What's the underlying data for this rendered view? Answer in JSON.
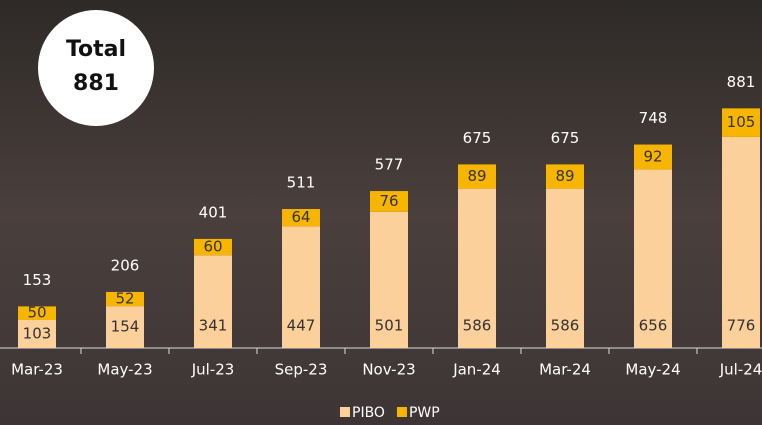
{
  "chart_data": {
    "type": "stacked-bar",
    "badge": {
      "label": "Total",
      "value": 881
    },
    "categories": [
      "Mar-23",
      "May-23",
      "Jul-23",
      "Sep-23",
      "Nov-23",
      "Jan-24",
      "Mar-24",
      "May-24",
      "Jul-24"
    ],
    "series": [
      {
        "name": "PIBO",
        "color": "#fcd09a",
        "values": [
          103,
          154,
          341,
          447,
          501,
          586,
          586,
          656,
          776
        ]
      },
      {
        "name": "PWP",
        "color": "#f7b500",
        "values": [
          50,
          52,
          60,
          64,
          76,
          89,
          89,
          92,
          105
        ]
      }
    ],
    "totals": [
      153,
      206,
      401,
      511,
      577,
      675,
      675,
      748,
      881
    ],
    "ylim": [
      0,
      1000
    ]
  }
}
